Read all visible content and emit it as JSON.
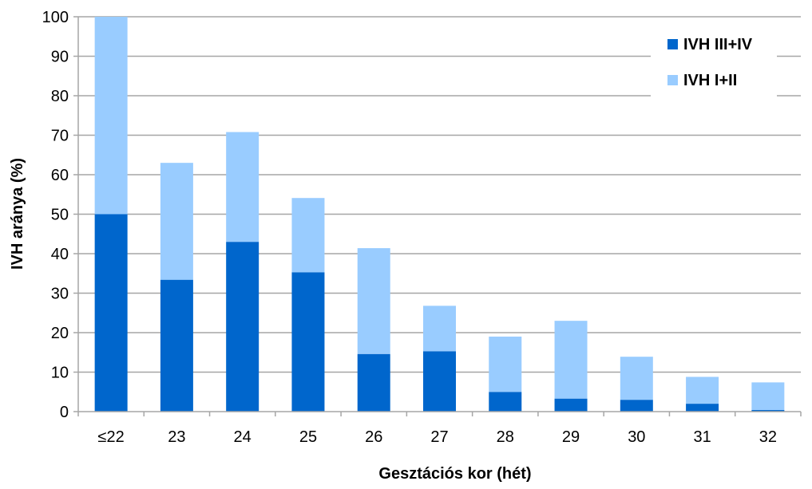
{
  "chart_data": {
    "type": "bar",
    "stacked": true,
    "categories": [
      "≤22",
      "23",
      "24",
      "25",
      "26",
      "27",
      "28",
      "29",
      "30",
      "31",
      "32"
    ],
    "series": [
      {
        "name": "IVH III+IV",
        "color": "#0066CC",
        "values": [
          50,
          33.4,
          43,
          35.3,
          14.6,
          15.3,
          5,
          3.3,
          3,
          2,
          0.4
        ]
      },
      {
        "name": "IVH I+II",
        "color": "#99CCFF",
        "values": [
          50,
          29.6,
          27.8,
          18.8,
          26.8,
          11.5,
          14,
          19.7,
          10.9,
          6.8,
          7
        ]
      }
    ],
    "xlabel": "Gesztációs kor (hét)",
    "ylabel": "IVH aránya (%)",
    "ylim": [
      0,
      100
    ],
    "yticks": [
      "0",
      "10",
      "20",
      "30",
      "40",
      "50",
      "60",
      "70",
      "80",
      "90",
      "100"
    ],
    "grid": true,
    "legend_position": "top-right",
    "legend_order": [
      "IVH III+IV",
      "IVH I+II"
    ]
  }
}
